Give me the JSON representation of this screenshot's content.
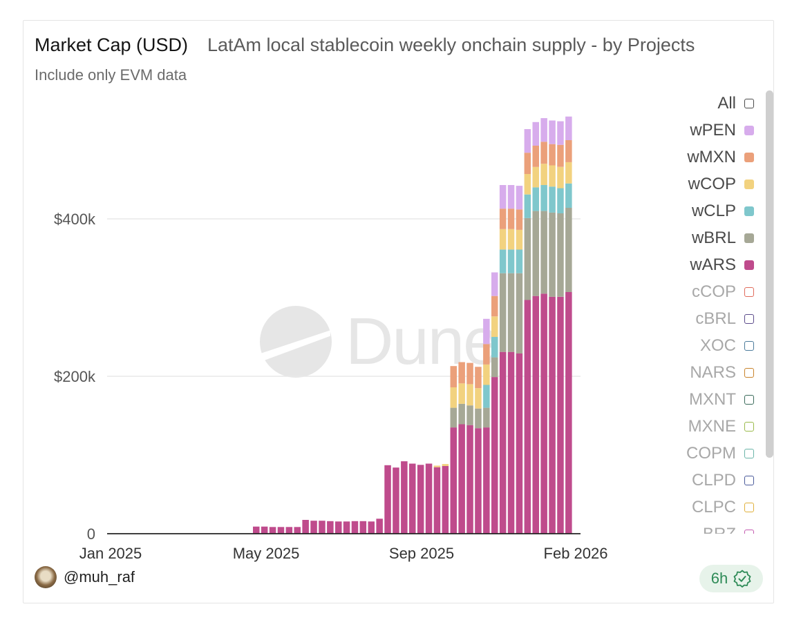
{
  "header": {
    "title": "Market Cap (USD)",
    "subtitle": "LatAm local stablecoin weekly onchain supply - by Projects",
    "note": "Include only EVM data"
  },
  "watermark": {
    "text": "Dune"
  },
  "footer": {
    "author": "@muh_raf",
    "freshness": "6h"
  },
  "legend": {
    "items": [
      {
        "label": "All",
        "color": "#4a4a4a",
        "active": true,
        "outline": true
      },
      {
        "label": "wPEN",
        "color": "#d7acec",
        "active": true
      },
      {
        "label": "wMXN",
        "color": "#eba07a",
        "active": true
      },
      {
        "label": "wCOP",
        "color": "#f2d27f",
        "active": true
      },
      {
        "label": "wCLP",
        "color": "#7fc7cc",
        "active": true
      },
      {
        "label": "wBRL",
        "color": "#a6a896",
        "active": true
      },
      {
        "label": "wARS",
        "color": "#bf4b8c",
        "active": true
      },
      {
        "label": "cCOP",
        "color": "#e06a5a",
        "active": false
      },
      {
        "label": "cBRL",
        "color": "#5a4a8a",
        "active": false
      },
      {
        "label": "XOC",
        "color": "#4a7a9a",
        "active": false
      },
      {
        "label": "NARS",
        "color": "#c8822a",
        "active": false
      },
      {
        "label": "MXNT",
        "color": "#3a6a5a",
        "active": false
      },
      {
        "label": "MXNE",
        "color": "#9aba4a",
        "active": false
      },
      {
        "label": "COPM",
        "color": "#6ab4a8",
        "active": false
      },
      {
        "label": "CLPD",
        "color": "#4a5a9a",
        "active": false
      },
      {
        "label": "CLPC",
        "color": "#e0b03a",
        "active": false
      },
      {
        "label": "BRZ",
        "color": "#c45ab0",
        "active": false
      }
    ]
  },
  "chart_data": {
    "type": "bar",
    "stacked": true,
    "x_ticks": [
      "Jan 2025",
      "May 2025",
      "Sep 2025",
      "Feb 2026"
    ],
    "y_ticks": [
      "0",
      "$200k",
      "$400k"
    ],
    "ylim": [
      0,
      540000
    ],
    "grid": true,
    "legend_position": "right",
    "series_order": [
      "wARS",
      "wBRL",
      "wCLP",
      "wCOP",
      "wMXN",
      "wPEN"
    ],
    "colors": {
      "wARS": "#bf4b8c",
      "wBRL": "#a6a896",
      "wCLP": "#7fc7cc",
      "wCOP": "#f2d27f",
      "wMXN": "#eba07a",
      "wPEN": "#d7acec"
    },
    "weeks": [
      {
        "date": "2025-05-05",
        "wARS": 9000
      },
      {
        "date": "2025-05-12",
        "wARS": 9000
      },
      {
        "date": "2025-05-19",
        "wARS": 8500
      },
      {
        "date": "2025-05-26",
        "wARS": 8500
      },
      {
        "date": "2025-06-02",
        "wARS": 8500
      },
      {
        "date": "2025-06-09",
        "wARS": 8500
      },
      {
        "date": "2025-06-16",
        "wARS": 17500
      },
      {
        "date": "2025-06-23",
        "wARS": 16500
      },
      {
        "date": "2025-06-30",
        "wARS": 16500
      },
      {
        "date": "2025-07-07",
        "wARS": 16000
      },
      {
        "date": "2025-07-14",
        "wARS": 15500
      },
      {
        "date": "2025-07-21",
        "wARS": 15500
      },
      {
        "date": "2025-07-28",
        "wARS": 16000
      },
      {
        "date": "2025-08-04",
        "wARS": 16000
      },
      {
        "date": "2025-08-11",
        "wARS": 15500
      },
      {
        "date": "2025-08-18",
        "wARS": 19000
      },
      {
        "date": "2025-08-25",
        "wARS": 87000
      },
      {
        "date": "2025-09-01",
        "wARS": 84000
      },
      {
        "date": "2025-09-08",
        "wARS": 92000
      },
      {
        "date": "2025-09-15",
        "wARS": 89000
      },
      {
        "date": "2025-09-22",
        "wARS": 87500
      },
      {
        "date": "2025-09-29",
        "wARS": 89000
      },
      {
        "date": "2025-10-06",
        "wARS": 84500,
        "wCOP": 2000
      },
      {
        "date": "2025-10-13",
        "wARS": 86000,
        "wCOP": 2500
      },
      {
        "date": "2025-10-20",
        "wARS": 135000,
        "wBRL": 25000,
        "wCOP": 26000,
        "wMXN": 27000
      },
      {
        "date": "2025-10-27",
        "wARS": 139000,
        "wBRL": 26000,
        "wCOP": 26000,
        "wMXN": 27000
      },
      {
        "date": "2025-11-03",
        "wARS": 138000,
        "wBRL": 25000,
        "wCOP": 27000,
        "wMXN": 27000
      },
      {
        "date": "2025-11-10",
        "wARS": 134000,
        "wBRL": 25000,
        "wCOP": 26000,
        "wMXN": 27000
      },
      {
        "date": "2025-11-17",
        "wARS": 135000,
        "wBRL": 25000,
        "wCLP": 29000,
        "wCOP": 26000,
        "wMXN": 26000,
        "wPEN": 32000
      },
      {
        "date": "2025-11-24",
        "wARS": 199000,
        "wBRL": 25000,
        "wCLP": 26000,
        "wCOP": 26000,
        "wMXN": 26000,
        "wPEN": 30000
      },
      {
        "date": "2025-12-01",
        "wARS": 231000,
        "wBRL": 100000,
        "wCLP": 30000,
        "wCOP": 26000,
        "wMXN": 26000,
        "wPEN": 30000
      },
      {
        "date": "2025-12-08",
        "wARS": 231000,
        "wBRL": 100000,
        "wCLP": 30000,
        "wCOP": 26000,
        "wMXN": 26000,
        "wPEN": 30000
      },
      {
        "date": "2025-12-15",
        "wARS": 229000,
        "wBRL": 102000,
        "wCLP": 30000,
        "wCOP": 25000,
        "wMXN": 26000,
        "wPEN": 30000
      },
      {
        "date": "2025-12-22",
        "wARS": 297000,
        "wBRL": 104000,
        "wCLP": 30000,
        "wCOP": 26000,
        "wMXN": 27000,
        "wPEN": 30000
      },
      {
        "date": "2025-12-29",
        "wARS": 302000,
        "wBRL": 108000,
        "wCLP": 30000,
        "wCOP": 26000,
        "wMXN": 27000,
        "wPEN": 30000
      },
      {
        "date": "2026-01-05",
        "wARS": 305000,
        "wBRL": 105000,
        "wCLP": 33000,
        "wCOP": 27000,
        "wMXN": 28000,
        "wPEN": 30000
      },
      {
        "date": "2026-01-12",
        "wARS": 301000,
        "wBRL": 107000,
        "wCLP": 33000,
        "wCOP": 27000,
        "wMXN": 27000,
        "wPEN": 30000
      },
      {
        "date": "2026-01-19",
        "wARS": 301000,
        "wBRL": 106000,
        "wCLP": 32000,
        "wCOP": 27000,
        "wMXN": 28000,
        "wPEN": 30000
      },
      {
        "date": "2026-01-26",
        "wARS": 307000,
        "wBRL": 107000,
        "wCLP": 31000,
        "wCOP": 27000,
        "wMXN": 28000,
        "wPEN": 30000
      }
    ]
  }
}
